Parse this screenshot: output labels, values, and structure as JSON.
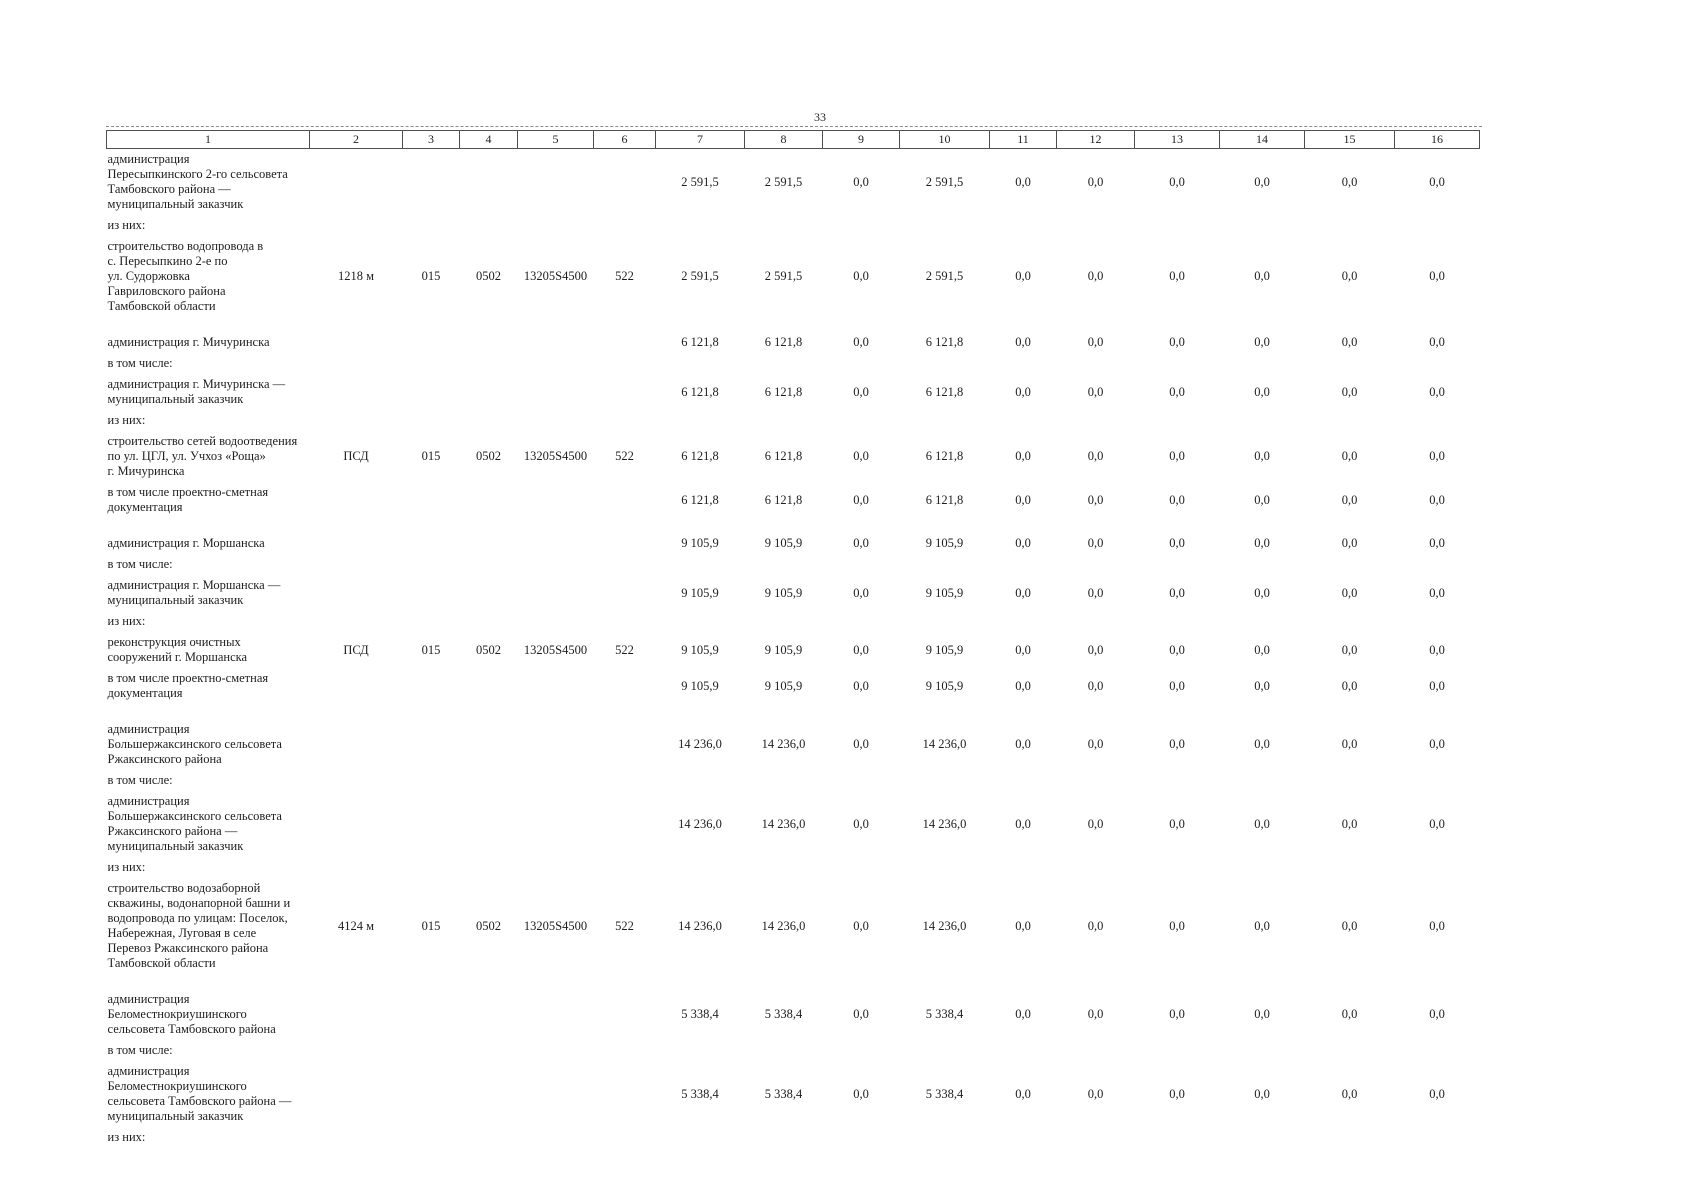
{
  "page": {
    "number": "33"
  },
  "table": {
    "column_headers": [
      "1",
      "2",
      "3",
      "4",
      "5",
      "6",
      "7",
      "8",
      "9",
      "10",
      "11",
      "12",
      "13",
      "14",
      "15",
      "16"
    ],
    "rows": [
      {
        "label": "администрация\nПересыпкинского 2-го сельсовета\nТамбовского района —\nмуниципальный заказчик",
        "values": [
          "2 591,5",
          "2 591,5",
          "0,0",
          "2 591,5",
          "0,0",
          "0,0",
          "0,0",
          "0,0",
          "0,0",
          "0,0"
        ]
      },
      {
        "label": "из них:"
      },
      {
        "label": "строительство водопровода в\nс. Пересыпкино 2-е по\nул. Судоржовка\nГавриловского района\nТамбовской области",
        "c2": "1218 м",
        "c3": "015",
        "c4": "0502",
        "c5": "13205S4500",
        "c6": "522",
        "values": [
          "2 591,5",
          "2 591,5",
          "0,0",
          "2 591,5",
          "0,0",
          "0,0",
          "0,0",
          "0,0",
          "0,0",
          "0,0"
        ]
      },
      {
        "spacer": true
      },
      {
        "label": "администрация г. Мичуринска",
        "values": [
          "6 121,8",
          "6 121,8",
          "0,0",
          "6 121,8",
          "0,0",
          "0,0",
          "0,0",
          "0,0",
          "0,0",
          "0,0"
        ]
      },
      {
        "label": "в том числе:"
      },
      {
        "label": "администрация г. Мичуринска —\nмуниципальный заказчик",
        "values": [
          "6 121,8",
          "6 121,8",
          "0,0",
          "6 121,8",
          "0,0",
          "0,0",
          "0,0",
          "0,0",
          "0,0",
          "0,0"
        ]
      },
      {
        "label": "из них:"
      },
      {
        "label": "строительство сетей водоотведения\nпо ул. ЦГЛ, ул. Учхоз «Роща»\nг. Мичуринска",
        "c2": "ПСД",
        "c3": "015",
        "c4": "0502",
        "c5": "13205S4500",
        "c6": "522",
        "values": [
          "6 121,8",
          "6 121,8",
          "0,0",
          "6 121,8",
          "0,0",
          "0,0",
          "0,0",
          "0,0",
          "0,0",
          "0,0"
        ]
      },
      {
        "label": "в том числе проектно-сметная\nдокументация",
        "values": [
          "6 121,8",
          "6 121,8",
          "0,0",
          "6 121,8",
          "0,0",
          "0,0",
          "0,0",
          "0,0",
          "0,0",
          "0,0"
        ]
      },
      {
        "spacer": true
      },
      {
        "label": "администрация г. Моршанска",
        "values": [
          "9 105,9",
          "9 105,9",
          "0,0",
          "9 105,9",
          "0,0",
          "0,0",
          "0,0",
          "0,0",
          "0,0",
          "0,0"
        ]
      },
      {
        "label": "в том числе:"
      },
      {
        "label": "администрация г. Моршанска —\nмуниципальный заказчик",
        "values": [
          "9 105,9",
          "9 105,9",
          "0,0",
          "9 105,9",
          "0,0",
          "0,0",
          "0,0",
          "0,0",
          "0,0",
          "0,0"
        ]
      },
      {
        "label": "из них:"
      },
      {
        "label": "реконструкция очистных\nсооружений г. Моршанска",
        "c2": "ПСД",
        "c3": "015",
        "c4": "0502",
        "c5": "13205S4500",
        "c6": "522",
        "values": [
          "9 105,9",
          "9 105,9",
          "0,0",
          "9 105,9",
          "0,0",
          "0,0",
          "0,0",
          "0,0",
          "0,0",
          "0,0"
        ]
      },
      {
        "label": "в том числе проектно-сметная\nдокументация",
        "values": [
          "9 105,9",
          "9 105,9",
          "0,0",
          "9 105,9",
          "0,0",
          "0,0",
          "0,0",
          "0,0",
          "0,0",
          "0,0"
        ]
      },
      {
        "spacer": true
      },
      {
        "label": "администрация\nБольшержаксинского сельсовета\nРжаксинского района",
        "values": [
          "14 236,0",
          "14 236,0",
          "0,0",
          "14 236,0",
          "0,0",
          "0,0",
          "0,0",
          "0,0",
          "0,0",
          "0,0"
        ]
      },
      {
        "label": "в том числе:"
      },
      {
        "label": "администрация\nБольшержаксинского сельсовета\nРжаксинского района —\nмуниципальный заказчик",
        "values": [
          "14 236,0",
          "14 236,0",
          "0,0",
          "14 236,0",
          "0,0",
          "0,0",
          "0,0",
          "0,0",
          "0,0",
          "0,0"
        ]
      },
      {
        "label": "из них:"
      },
      {
        "label": "строительство водозаборной\nскважины, водонапорной башни и\nводопровода по улицам: Поселок,\nНабережная, Луговая в селе\nПеревоз Ржаксинского района\nТамбовской области",
        "c2": "4124 м",
        "c3": "015",
        "c4": "0502",
        "c5": "13205S4500",
        "c6": "522",
        "values": [
          "14 236,0",
          "14 236,0",
          "0,0",
          "14 236,0",
          "0,0",
          "0,0",
          "0,0",
          "0,0",
          "0,0",
          "0,0"
        ]
      },
      {
        "spacer": true
      },
      {
        "label": "администрация\nБеломестнокриушинского\nсельсовета Тамбовского района",
        "values": [
          "5 338,4",
          "5 338,4",
          "0,0",
          "5 338,4",
          "0,0",
          "0,0",
          "0,0",
          "0,0",
          "0,0",
          "0,0"
        ]
      },
      {
        "label": "в том числе:"
      },
      {
        "label": "администрация\nБеломестнокриушинского\nсельсовета Тамбовского района —\nмуниципальный заказчик",
        "values": [
          "5 338,4",
          "5 338,4",
          "0,0",
          "5 338,4",
          "0,0",
          "0,0",
          "0,0",
          "0,0",
          "0,0",
          "0,0"
        ]
      },
      {
        "label": "из них:"
      }
    ]
  }
}
